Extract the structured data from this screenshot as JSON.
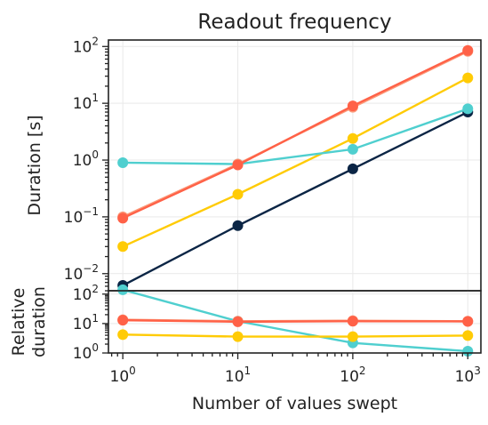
{
  "chart_data": [
    {
      "type": "line",
      "title": "Readout frequency",
      "ylabel": "Duration [s]",
      "xscale": "log",
      "yscale": "log",
      "xlim": [
        0.75,
        1300
      ],
      "ylim": [
        0.005,
        130
      ],
      "x": [
        1,
        10,
        100,
        1000
      ],
      "yticks": [
        0.01,
        0.1,
        1,
        10,
        100
      ],
      "ytick_labels": [
        {
          "base": "10",
          "exp": "−2"
        },
        {
          "base": "10",
          "exp": "−1"
        },
        {
          "base": "10",
          "exp": "0"
        },
        {
          "base": "10",
          "exp": "1"
        },
        {
          "base": "10",
          "exp": "2"
        }
      ],
      "grid": true,
      "series": [
        {
          "color": "#0b2545",
          "values": [
            0.0062,
            0.07,
            0.7,
            7.0
          ]
        },
        {
          "color": "#ffcb05",
          "values": [
            0.03,
            0.25,
            2.4,
            28
          ]
        },
        {
          "color": "#4fcfcf",
          "values": [
            0.9,
            0.85,
            1.55,
            8.0
          ]
        },
        {
          "color": "#fb9a7a",
          "values": [
            0.1,
            0.85,
            8.5,
            82
          ]
        },
        {
          "color": "#ff6147",
          "values": [
            0.095,
            0.82,
            9.0,
            85
          ]
        }
      ]
    },
    {
      "type": "line",
      "ylabel": [
        "Relative",
        "duration"
      ],
      "xlabel": "Number of values swept",
      "xscale": "log",
      "yscale": "log",
      "xlim": [
        0.75,
        1300
      ],
      "ylim": [
        1,
        130
      ],
      "x": [
        1,
        10,
        100,
        1000
      ],
      "xticks": [
        1,
        10,
        100,
        1000
      ],
      "xtick_labels": [
        {
          "base": "10",
          "exp": "0"
        },
        {
          "base": "10",
          "exp": "1"
        },
        {
          "base": "10",
          "exp": "2"
        },
        {
          "base": "10",
          "exp": "3"
        }
      ],
      "yticks": [
        1,
        10,
        100
      ],
      "ytick_labels": [
        {
          "base": "10",
          "exp": "0"
        },
        {
          "base": "10",
          "exp": "1"
        },
        {
          "base": "10",
          "exp": "2"
        }
      ],
      "grid": true,
      "series": [
        {
          "color": "#4fcfcf",
          "values": [
            140,
            12,
            2.2,
            1.15
          ]
        },
        {
          "color": "#ffcb05",
          "values": [
            4.2,
            3.6,
            3.6,
            3.9
          ]
        },
        {
          "color": "#fb9a7a",
          "values": [
            13.5,
            12,
            12.5,
            12
          ]
        },
        {
          "color": "#ff6147",
          "values": [
            13,
            11.5,
            12,
            11.8
          ]
        }
      ]
    }
  ]
}
